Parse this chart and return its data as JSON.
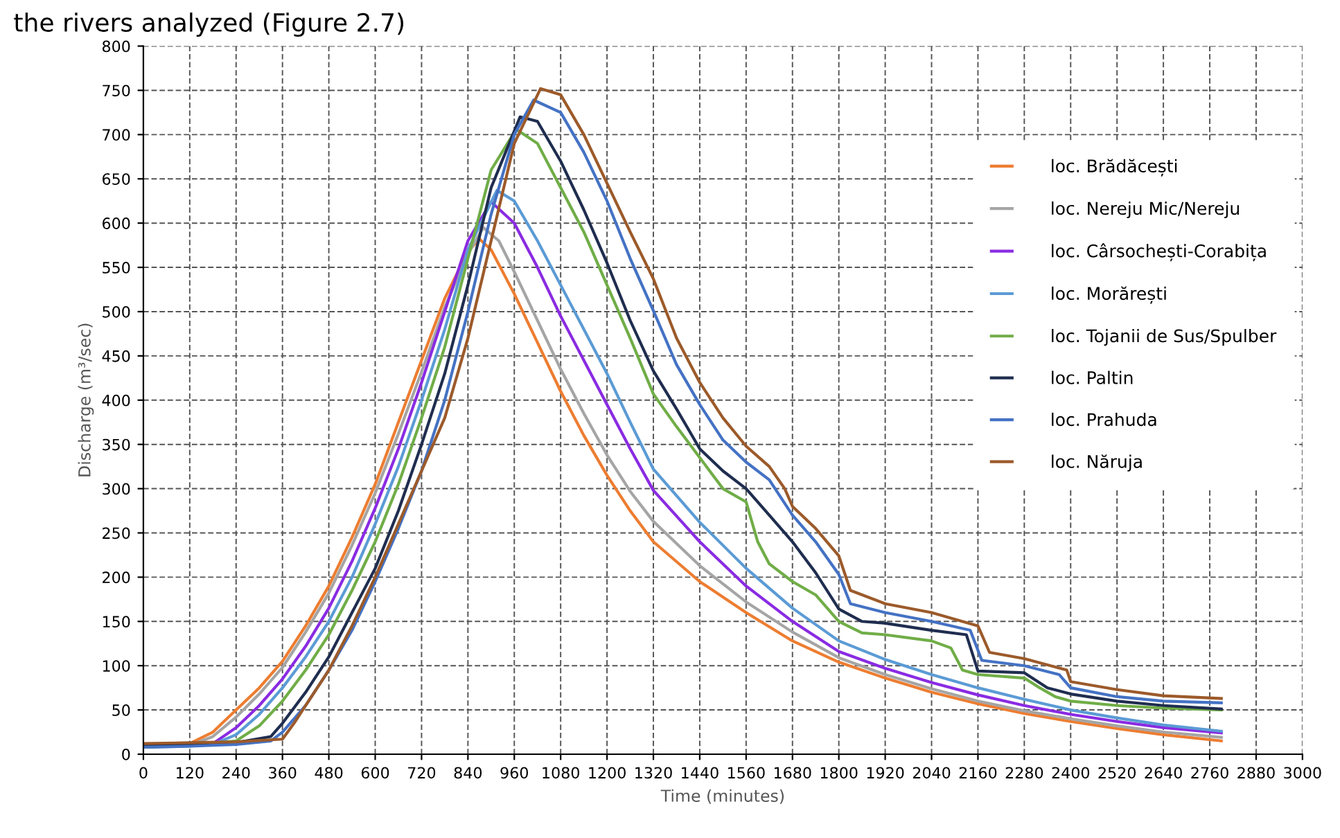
{
  "chart_data": {
    "type": "line",
    "xlabel": "Time (minutes)",
    "ylabel": "Discharge (m³/sec)",
    "annotations": [
      "the rivers analyzed (Figure 2.7)"
    ],
    "xlim": [
      0,
      3000
    ],
    "ylim": [
      0,
      800
    ],
    "xticks": [
      0,
      120,
      240,
      360,
      480,
      600,
      720,
      840,
      960,
      1080,
      1200,
      1320,
      1440,
      1560,
      1680,
      1800,
      1920,
      2040,
      2160,
      2280,
      2400,
      2520,
      2640,
      2760,
      2880,
      3000
    ],
    "yticks": [
      0,
      50,
      100,
      150,
      200,
      250,
      300,
      350,
      400,
      450,
      500,
      550,
      600,
      650,
      700,
      750,
      800
    ],
    "grid": true,
    "legend": "right",
    "line_style": "solid",
    "marker": "none",
    "series": [
      {
        "name": "loc. Brădăcești",
        "color": "#ed7d31",
        "x": [
          0,
          120,
          180,
          240,
          300,
          360,
          420,
          480,
          540,
          600,
          660,
          720,
          780,
          840,
          870,
          900,
          960,
          1020,
          1080,
          1140,
          1200,
          1260,
          1320,
          1440,
          1560,
          1680,
          1800,
          1920,
          2040,
          2160,
          2280,
          2400,
          2520,
          2640,
          2790
        ],
        "values": [
          10,
          12,
          25,
          50,
          75,
          105,
          145,
          190,
          245,
          305,
          375,
          445,
          515,
          568,
          582,
          570,
          520,
          465,
          410,
          360,
          315,
          275,
          240,
          195,
          160,
          128,
          104,
          86,
          70,
          57,
          46,
          37,
          29,
          22,
          15
        ]
      },
      {
        "name": "loc. Nereju Mic/Nereju",
        "color": "#a5a5a5",
        "x": [
          0,
          120,
          180,
          240,
          300,
          360,
          420,
          480,
          540,
          600,
          660,
          720,
          780,
          840,
          880,
          920,
          960,
          1020,
          1080,
          1140,
          1200,
          1260,
          1320,
          1440,
          1560,
          1680,
          1800,
          1920,
          2040,
          2160,
          2280,
          2400,
          2520,
          2640,
          2790
        ],
        "values": [
          8,
          10,
          20,
          42,
          68,
          98,
          138,
          182,
          236,
          295,
          362,
          432,
          505,
          565,
          595,
          580,
          545,
          490,
          435,
          385,
          338,
          297,
          263,
          213,
          172,
          138,
          109,
          90,
          74,
          60,
          49,
          40,
          32,
          25,
          19
        ]
      },
      {
        "name": "loc. Cârsochești-Corabița",
        "color": "#8a2be2",
        "x": [
          0,
          120,
          180,
          240,
          300,
          360,
          420,
          480,
          540,
          600,
          660,
          720,
          780,
          840,
          900,
          960,
          1020,
          1080,
          1140,
          1200,
          1260,
          1320,
          1440,
          1560,
          1680,
          1800,
          1920,
          2040,
          2160,
          2280,
          2400,
          2520,
          2640,
          2790
        ],
        "values": [
          8,
          10,
          12,
          30,
          55,
          85,
          122,
          165,
          218,
          278,
          345,
          420,
          500,
          580,
          624,
          600,
          550,
          495,
          445,
          395,
          345,
          298,
          240,
          190,
          150,
          116,
          97,
          81,
          67,
          55,
          45,
          37,
          30,
          24
        ]
      },
      {
        "name": "loc. Morărești",
        "color": "#5b9bd5",
        "x": [
          0,
          120,
          180,
          240,
          300,
          360,
          420,
          480,
          540,
          600,
          660,
          720,
          780,
          840,
          915,
          960,
          1020,
          1080,
          1140,
          1200,
          1260,
          1320,
          1440,
          1560,
          1680,
          1800,
          1920,
          2040,
          2160,
          2280,
          2400,
          2520,
          2640,
          2790
        ],
        "values": [
          8,
          9,
          11,
          22,
          45,
          75,
          110,
          150,
          200,
          260,
          325,
          400,
          480,
          570,
          637,
          625,
          580,
          530,
          480,
          430,
          375,
          322,
          262,
          210,
          165,
          128,
          107,
          90,
          75,
          62,
          50,
          41,
          33,
          26
        ]
      },
      {
        "name": "loc. Tojanii de Sus/Spulber",
        "color": "#70ad47",
        "x": [
          0,
          120,
          240,
          300,
          360,
          420,
          480,
          540,
          600,
          660,
          720,
          780,
          840,
          900,
          965,
          1020,
          1080,
          1140,
          1200,
          1260,
          1320,
          1380,
          1440,
          1500,
          1560,
          1590,
          1620,
          1680,
          1740,
          1800,
          1860,
          1920,
          2040,
          2090,
          2120,
          2160,
          2280,
          2320,
          2360,
          2400,
          2520,
          2640,
          2790
        ],
        "values": [
          8,
          10,
          15,
          32,
          60,
          95,
          135,
          185,
          240,
          305,
          380,
          460,
          560,
          660,
          706,
          690,
          640,
          590,
          530,
          470,
          407,
          370,
          335,
          300,
          285,
          240,
          215,
          195,
          180,
          150,
          137,
          135,
          128,
          120,
          95,
          90,
          86,
          75,
          65,
          60,
          55,
          52,
          50
        ]
      },
      {
        "name": "loc. Paltin",
        "color": "#1f2d4f",
        "x": [
          0,
          120,
          240,
          330,
          360,
          420,
          480,
          540,
          600,
          660,
          720,
          780,
          840,
          900,
          975,
          1020,
          1080,
          1140,
          1200,
          1260,
          1320,
          1380,
          1440,
          1500,
          1560,
          1620,
          1680,
          1740,
          1800,
          1860,
          1920,
          2040,
          2130,
          2160,
          2280,
          2340,
          2400,
          2520,
          2640,
          2790
        ],
        "values": [
          10,
          11,
          13,
          20,
          35,
          70,
          110,
          160,
          210,
          275,
          350,
          430,
          530,
          640,
          720,
          715,
          670,
          615,
          555,
          490,
          433,
          390,
          345,
          320,
          300,
          270,
          240,
          205,
          164,
          150,
          148,
          140,
          135,
          94,
          92,
          75,
          68,
          60,
          55,
          51
        ]
      },
      {
        "name": "loc. Prahuda",
        "color": "#4472c4",
        "x": [
          0,
          120,
          240,
          330,
          360,
          420,
          480,
          540,
          600,
          660,
          720,
          780,
          840,
          900,
          960,
          1010,
          1080,
          1140,
          1200,
          1260,
          1320,
          1380,
          1440,
          1500,
          1560,
          1620,
          1680,
          1740,
          1800,
          1830,
          1920,
          2040,
          2140,
          2170,
          2280,
          2370,
          2400,
          2520,
          2640,
          2790
        ],
        "values": [
          8,
          9,
          11,
          15,
          25,
          55,
          95,
          140,
          195,
          255,
          320,
          400,
          500,
          610,
          700,
          739,
          725,
          680,
          625,
          560,
          501,
          440,
          395,
          355,
          330,
          310,
          270,
          240,
          203,
          170,
          160,
          150,
          140,
          106,
          100,
          90,
          75,
          65,
          60,
          58
        ]
      },
      {
        "name": "loc. Năruja",
        "color": "#9c5a2a",
        "x": [
          0,
          120,
          240,
          360,
          390,
          420,
          480,
          540,
          600,
          660,
          720,
          780,
          840,
          900,
          960,
          1028,
          1080,
          1140,
          1200,
          1260,
          1320,
          1380,
          1440,
          1500,
          1560,
          1620,
          1660,
          1680,
          1740,
          1800,
          1830,
          1920,
          2040,
          2160,
          2190,
          2280,
          2390,
          2400,
          2520,
          2640,
          2790
        ],
        "values": [
          12,
          13,
          14,
          17,
          35,
          55,
          95,
          145,
          200,
          260,
          320,
          380,
          470,
          580,
          690,
          752,
          745,
          700,
          645,
          590,
          537,
          470,
          420,
          380,
          348,
          325,
          300,
          280,
          255,
          224,
          185,
          170,
          160,
          145,
          115,
          108,
          95,
          82,
          73,
          66,
          63
        ]
      }
    ]
  }
}
